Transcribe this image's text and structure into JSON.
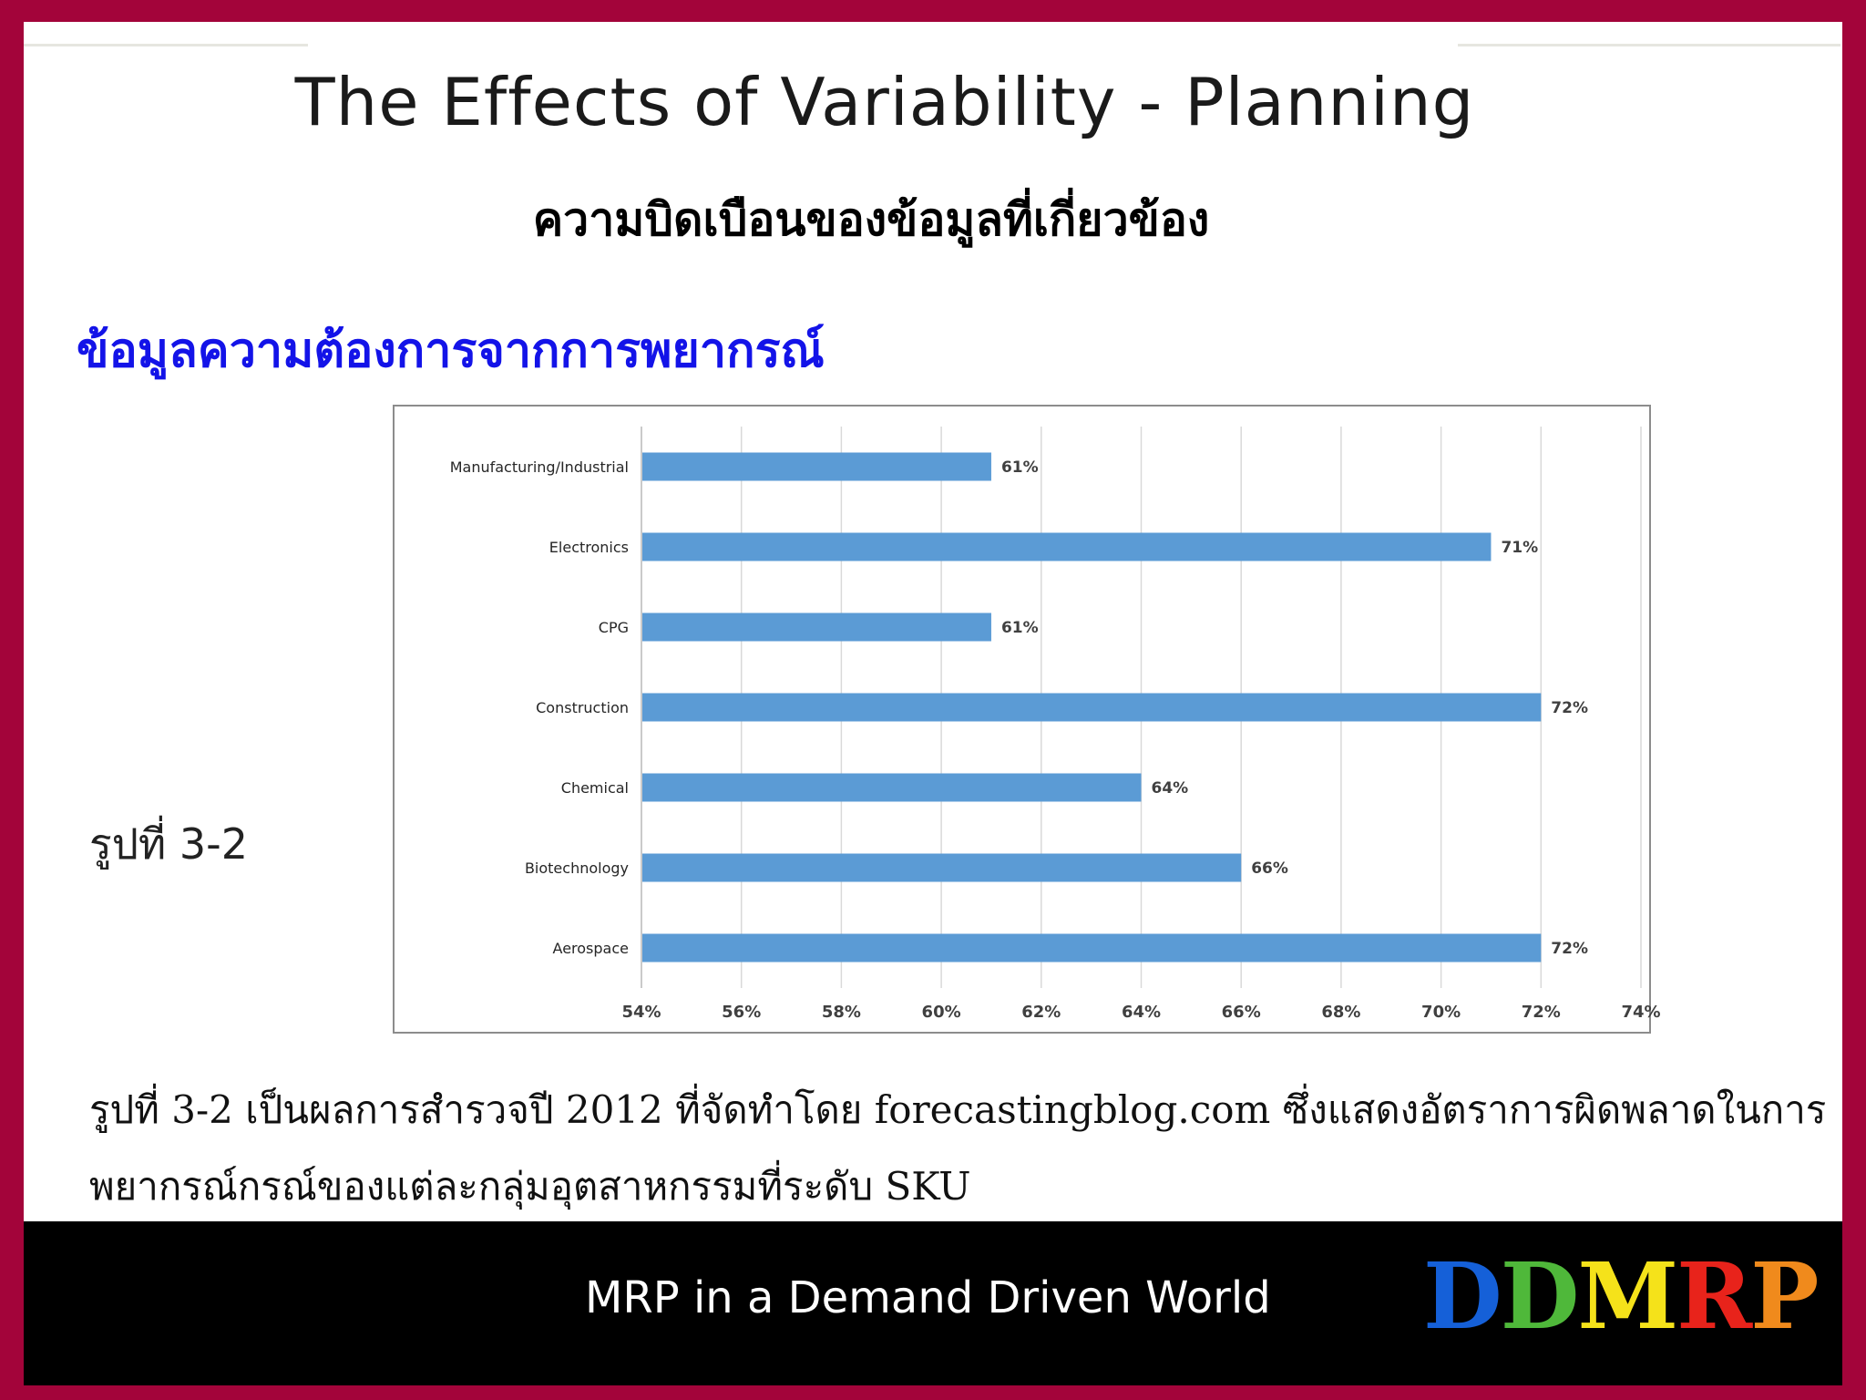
{
  "slide": {
    "title": "The Effects of Variability - Planning",
    "subtitle": "ความบิดเบือนของข้อมูลที่เกี่ยวข้อง",
    "section_heading": "ข้อมูลความต้องการจากการพยากรณ์",
    "figure_label": "รูปที่ 3-2",
    "caption_line1": "รูปที่ 3-2 เป็นผลการสำรวจปี 2012 ที่จัดทำโดย forecastingblog.com ซึ่งแสดงอัตราการผิดพลาดในการ",
    "caption_line2": "พยากรณ์กรณ์ของแต่ละกลุ่มอุตสาหกรรมที่ระดับ SKU"
  },
  "footer": {
    "text": "MRP in a Demand Driven World",
    "brand_letters": [
      {
        "char": "D",
        "color": "#1560d8"
      },
      {
        "char": "D",
        "color": "#4fb83a"
      },
      {
        "char": "M",
        "color": "#f5e21a"
      },
      {
        "char": "R",
        "color": "#e8231b"
      },
      {
        "char": "P",
        "color": "#f08a1c"
      }
    ]
  },
  "colors": {
    "frame": "#a3043a",
    "bar": "#5b9bd5",
    "heading": "#1313e8"
  },
  "chart_data": {
    "type": "bar",
    "orientation": "horizontal",
    "categories": [
      "Manufacturing/Industrial",
      "Electronics",
      "CPG",
      "Construction",
      "Chemical",
      "Biotechnology",
      "Aerospace"
    ],
    "values": [
      61,
      71,
      61,
      72,
      64,
      66,
      72
    ],
    "data_labels": [
      "61%",
      "71%",
      "61%",
      "72%",
      "64%",
      "66%",
      "72%"
    ],
    "xlim": [
      54,
      74
    ],
    "x_ticks": [
      54,
      56,
      58,
      60,
      62,
      64,
      66,
      68,
      70,
      72,
      74
    ],
    "x_tick_labels": [
      "54%",
      "56%",
      "58%",
      "60%",
      "62%",
      "64%",
      "66%",
      "68%",
      "70%",
      "72%",
      "74%"
    ],
    "grid": "vertical",
    "legend": "none"
  }
}
